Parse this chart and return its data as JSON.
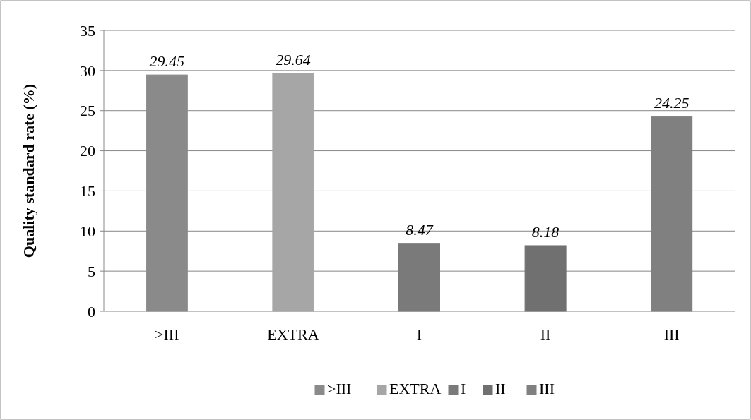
{
  "chart_data": {
    "type": "bar",
    "ylabel": "Quality standard rate (%)",
    "categories": [
      ">III",
      "EXTRA",
      "I",
      "II",
      "III"
    ],
    "series": [
      {
        "name": ">III",
        "color": "#8a8a8a",
        "values": [
          29.45,
          null,
          null,
          null,
          null
        ]
      },
      {
        "name": "EXTRA",
        "color": "#a6a6a6",
        "values": [
          null,
          29.64,
          null,
          null,
          null
        ]
      },
      {
        "name": "I",
        "color": "#7a7a7a",
        "values": [
          null,
          null,
          8.47,
          null,
          null
        ]
      },
      {
        "name": "II",
        "color": "#707070",
        "values": [
          null,
          null,
          null,
          8.18,
          null
        ]
      },
      {
        "name": "III",
        "color": "#808080",
        "values": [
          null,
          null,
          null,
          null,
          24.25
        ]
      }
    ],
    "ylim": [
      0,
      35
    ],
    "yticks": [
      0,
      5,
      10,
      15,
      20,
      25,
      30,
      35
    ],
    "grid": "y",
    "data_labels": true,
    "legend": "bottom"
  }
}
